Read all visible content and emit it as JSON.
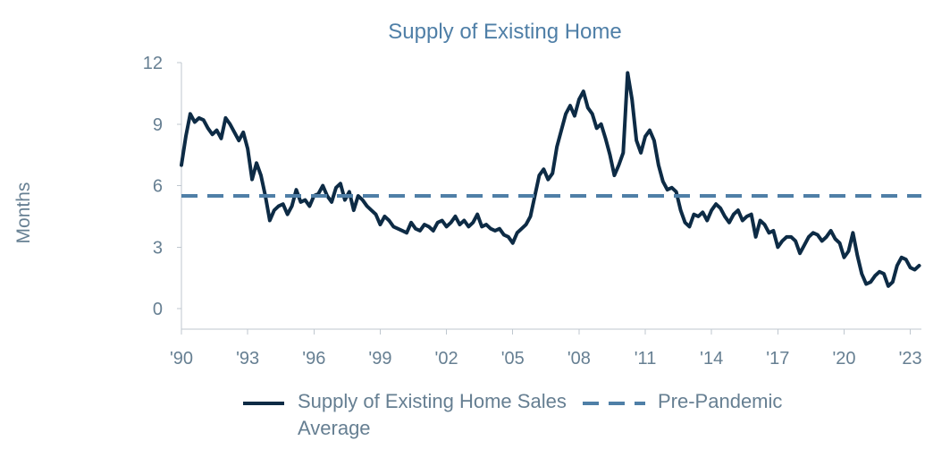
{
  "chart_data": {
    "type": "line",
    "title": "Supply of Existing Home",
    "subtitle": "",
    "xlabel": "",
    "ylabel": "Months",
    "ylim": [
      -1,
      12
    ],
    "xlim": [
      1990,
      2023.5
    ],
    "grid": false,
    "legend_position": "bottom",
    "yticks": [
      0,
      3,
      6,
      9,
      12
    ],
    "yticks_labels": [
      "0",
      "3",
      "6",
      "9",
      "12"
    ],
    "xticks": [
      1990,
      1993,
      1996,
      1999,
      2002,
      2005,
      2008,
      2011,
      2014,
      2017,
      2020,
      2023
    ],
    "xticks_labels": [
      "'90",
      "'93",
      "'96",
      "'99",
      "'02",
      "'05",
      "'08",
      "'11",
      "'14",
      "'17",
      "'20",
      "'23"
    ],
    "series": [
      {
        "name": "Supply of Existing Home Sales",
        "color": "#0d2b45",
        "style": "solid",
        "x": [
          1990.0,
          1990.2,
          1990.4,
          1990.6,
          1990.8,
          1991.0,
          1991.2,
          1991.4,
          1991.6,
          1991.8,
          1992.0,
          1992.2,
          1992.4,
          1992.6,
          1992.8,
          1993.0,
          1993.2,
          1993.4,
          1993.6,
          1993.8,
          1994.0,
          1994.2,
          1994.4,
          1994.6,
          1994.8,
          1995.0,
          1995.2,
          1995.4,
          1995.6,
          1995.8,
          1996.0,
          1996.2,
          1996.4,
          1996.6,
          1996.8,
          1997.0,
          1997.2,
          1997.4,
          1997.6,
          1997.8,
          1998.0,
          1998.2,
          1998.4,
          1998.6,
          1998.8,
          1999.0,
          1999.2,
          1999.4,
          1999.6,
          1999.8,
          2000.0,
          2000.2,
          2000.4,
          2000.6,
          2000.8,
          2001.0,
          2001.2,
          2001.4,
          2001.6,
          2001.8,
          2002.0,
          2002.2,
          2002.4,
          2002.6,
          2002.8,
          2003.0,
          2003.2,
          2003.4,
          2003.6,
          2003.8,
          2004.0,
          2004.2,
          2004.4,
          2004.6,
          2004.8,
          2005.0,
          2005.2,
          2005.4,
          2005.6,
          2005.8,
          2006.0,
          2006.2,
          2006.4,
          2006.6,
          2006.8,
          2007.0,
          2007.2,
          2007.4,
          2007.6,
          2007.8,
          2008.0,
          2008.2,
          2008.4,
          2008.6,
          2008.8,
          2009.0,
          2009.2,
          2009.4,
          2009.6,
          2009.8,
          2010.0,
          2010.2,
          2010.4,
          2010.6,
          2010.8,
          2011.0,
          2011.2,
          2011.4,
          2011.6,
          2011.8,
          2012.0,
          2012.2,
          2012.4,
          2012.6,
          2012.8,
          2013.0,
          2013.2,
          2013.4,
          2013.6,
          2013.8,
          2014.0,
          2014.2,
          2014.4,
          2014.6,
          2014.8,
          2015.0,
          2015.2,
          2015.4,
          2015.6,
          2015.8,
          2016.0,
          2016.2,
          2016.4,
          2016.6,
          2016.8,
          2017.0,
          2017.2,
          2017.4,
          2017.6,
          2017.8,
          2018.0,
          2018.2,
          2018.4,
          2018.6,
          2018.8,
          2019.0,
          2019.2,
          2019.4,
          2019.6,
          2019.8,
          2020.0,
          2020.2,
          2020.4,
          2020.6,
          2020.8,
          2021.0,
          2021.2,
          2021.4,
          2021.6,
          2021.8,
          2022.0,
          2022.2,
          2022.4,
          2022.6,
          2022.8,
          2023.0,
          2023.2,
          2023.4
        ],
        "y": [
          7.0,
          8.4,
          9.5,
          9.1,
          9.3,
          9.2,
          8.8,
          8.5,
          8.7,
          8.3,
          9.3,
          9.0,
          8.6,
          8.2,
          8.6,
          7.8,
          6.3,
          7.1,
          6.5,
          5.5,
          4.3,
          4.8,
          5.0,
          5.1,
          4.6,
          5.0,
          5.8,
          5.2,
          5.3,
          5.0,
          5.5,
          5.6,
          6.0,
          5.5,
          5.2,
          5.9,
          6.1,
          5.3,
          5.7,
          4.8,
          5.5,
          5.3,
          5.0,
          4.8,
          4.6,
          4.1,
          4.5,
          4.3,
          4.0,
          3.9,
          3.8,
          3.7,
          4.2,
          3.9,
          3.8,
          4.1,
          4.0,
          3.8,
          4.2,
          4.3,
          4.0,
          4.2,
          4.5,
          4.1,
          4.3,
          4.0,
          4.2,
          4.6,
          4.0,
          4.1,
          3.9,
          3.8,
          3.9,
          3.6,
          3.5,
          3.2,
          3.7,
          3.9,
          4.1,
          4.5,
          5.5,
          6.5,
          6.8,
          6.3,
          6.6,
          7.9,
          8.7,
          9.5,
          9.9,
          9.4,
          10.2,
          10.6,
          9.8,
          9.5,
          8.8,
          9.0,
          8.3,
          7.5,
          6.5,
          7.0,
          7.6,
          11.5,
          10.2,
          8.2,
          7.6,
          8.4,
          8.7,
          8.2,
          7.0,
          6.2,
          5.8,
          5.9,
          5.7,
          4.8,
          4.2,
          4.0,
          4.6,
          4.5,
          4.7,
          4.3,
          4.8,
          5.1,
          4.9,
          4.5,
          4.2,
          4.6,
          4.8,
          4.3,
          4.5,
          4.6,
          3.5,
          4.3,
          4.1,
          3.7,
          3.8,
          3.0,
          3.3,
          3.5,
          3.5,
          3.3,
          2.7,
          3.1,
          3.5,
          3.7,
          3.6,
          3.3,
          3.5,
          3.8,
          3.4,
          3.2,
          2.5,
          2.8,
          3.7,
          2.6,
          1.7,
          1.2,
          1.3,
          1.6,
          1.8,
          1.7,
          1.1,
          1.3,
          2.1,
          2.5,
          2.4,
          2.0,
          1.9,
          2.1
        ]
      },
      {
        "name": "Pre-Pandemic Average",
        "color": "#4f7fa7",
        "style": "dashed",
        "x": [
          1990,
          2023.5
        ],
        "y": [
          5.5,
          5.5
        ]
      }
    ]
  }
}
